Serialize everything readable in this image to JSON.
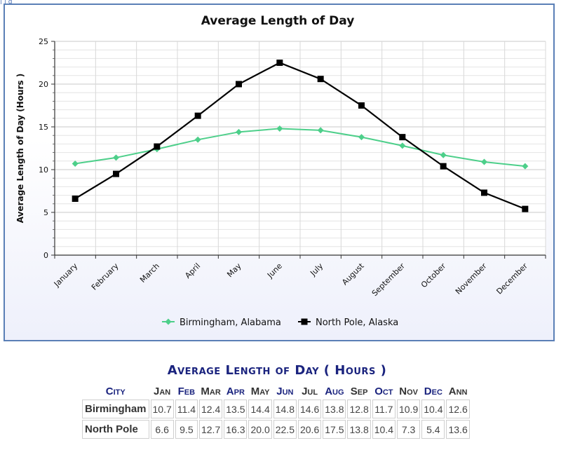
{
  "chart_data": {
    "type": "line",
    "title": "Average Length of Day",
    "ylabel": "Average Length of Day (Hours )",
    "xlabel": "",
    "categories": [
      "January",
      "February",
      "March",
      "April",
      "May",
      "June",
      "July",
      "August",
      "September",
      "October",
      "November",
      "December"
    ],
    "ylim": [
      0,
      25
    ],
    "yticks": [
      0,
      5,
      10,
      15,
      20,
      25
    ],
    "grid": true,
    "legend_position": "bottom",
    "series": [
      {
        "name": "Birmingham, Alabama",
        "color": "#4dcf8a",
        "marker": "diamond",
        "values": [
          10.7,
          11.4,
          12.4,
          13.5,
          14.4,
          14.8,
          14.6,
          13.8,
          12.8,
          11.7,
          10.9,
          10.4
        ]
      },
      {
        "name": "North Pole, Alaska",
        "color": "#000000",
        "marker": "square",
        "values": [
          6.6,
          9.5,
          12.7,
          16.3,
          20.0,
          22.5,
          20.6,
          17.5,
          13.8,
          10.4,
          7.3,
          5.4
        ]
      }
    ]
  },
  "table": {
    "title": "Average Length of Day ( Hours )",
    "headers": [
      {
        "label": "City",
        "color": "blue"
      },
      {
        "label": "Jan",
        "color": "gray"
      },
      {
        "label": "Feb",
        "color": "blue"
      },
      {
        "label": "Mar",
        "color": "gray"
      },
      {
        "label": "Apr",
        "color": "blue"
      },
      {
        "label": "May",
        "color": "gray"
      },
      {
        "label": "Jun",
        "color": "blue"
      },
      {
        "label": "Jul",
        "color": "gray"
      },
      {
        "label": "Aug",
        "color": "blue"
      },
      {
        "label": "Sep",
        "color": "gray"
      },
      {
        "label": "Oct",
        "color": "blue"
      },
      {
        "label": "Nov",
        "color": "gray"
      },
      {
        "label": "Dec",
        "color": "blue"
      },
      {
        "label": "Ann",
        "color": "gray"
      }
    ],
    "rows": [
      {
        "city": "Birmingham",
        "values": [
          "10.7",
          "11.4",
          "12.4",
          "13.5",
          "14.4",
          "14.8",
          "14.6",
          "13.8",
          "12.8",
          "11.7",
          "10.9",
          "10.4",
          "12.6"
        ]
      },
      {
        "city": "North Pole",
        "values": [
          "6.6",
          "9.5",
          "12.7",
          "16.3",
          "20.0",
          "22.5",
          "20.6",
          "17.5",
          "13.8",
          "10.4",
          "7.3",
          "5.4",
          "13.6"
        ]
      }
    ]
  }
}
